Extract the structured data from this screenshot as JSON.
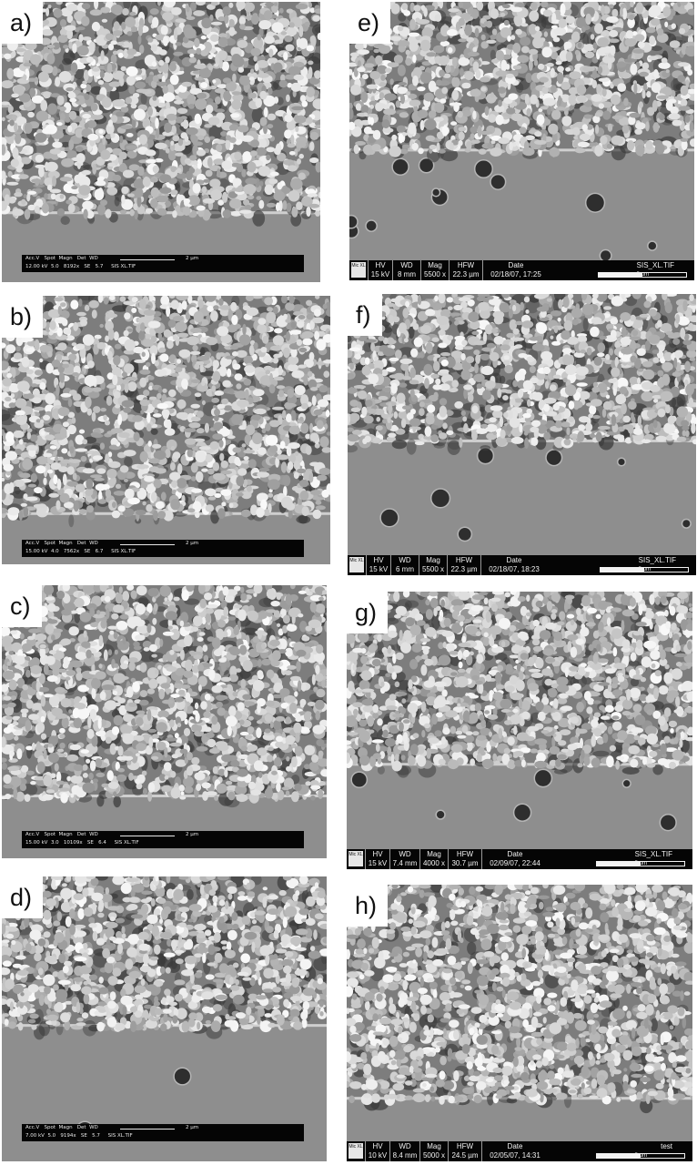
{
  "colors": {
    "background": "#ffffff",
    "info_bar": "#050505",
    "grain_light": "#d9d9d9",
    "grain_dark": "#3a3a3a",
    "substrate": "#8e8e8e"
  },
  "panels": [
    {
      "label": "a)",
      "bar_style": "philips",
      "row1": "Acc.V   Spot  Magn   Det  WD",
      "row2": "12.00 kV  5.0   8192x   SE   5.7     SIS XL.TIF",
      "scale": "2 μm"
    },
    {
      "label": "b)",
      "bar_style": "philips",
      "row1": "Acc.V   Spot  Magn   Det  WD",
      "row2": "15.00 kV  4.0   7562x   SE   6.7     SIS XL.TIF",
      "scale": "2 μm"
    },
    {
      "label": "c)",
      "bar_style": "philips",
      "row1": "Acc.V   Spot  Magn   Det  WD",
      "row2": "15.00 kV  3.0   10109x   SE   6.4     SIS XL.TIF",
      "scale": "2 μm"
    },
    {
      "label": "d)",
      "bar_style": "philips",
      "row1": "Acc.V   Spot  Magn   Det  WD",
      "row2": "7.00 kV  5.0   9194x   SE   5.7     SIS XL.TIF",
      "scale": "2 μm"
    },
    {
      "label": "e)",
      "bar_style": "fei",
      "logo": "Mic XL",
      "hv": "15 kV",
      "wd": "8 mm",
      "mag": "5500 x",
      "hfw": "22.3 µm",
      "date": "02/18/07, 17:25",
      "file": "SIS_XL.TIF",
      "scale": "5 μm"
    },
    {
      "label": "f)",
      "bar_style": "fei",
      "logo": "Mic XL",
      "hv": "15 kV",
      "wd": "6 mm",
      "mag": "5500 x",
      "hfw": "22.3 µm",
      "date": "02/18/07, 18:23",
      "file": "SIS_XL.TIF",
      "scale": "5 μm"
    },
    {
      "label": "g)",
      "bar_style": "fei",
      "logo": "Mic XL",
      "hv": "15 kV",
      "wd": "7.4 mm",
      "mag": "4000 x",
      "hfw": "30.7 µm",
      "date": "02/09/07, 22:44",
      "file": "SIS_XL.TIF",
      "scale": "5 μm"
    },
    {
      "label": "h)",
      "bar_style": "fei",
      "logo": "Mic XL",
      "hv": "10 kV",
      "wd": "8.4 mm",
      "mag": "5000 x",
      "hfw": "24.5 µm",
      "date": "02/05/07, 14:31",
      "file": "test",
      "scale": "5 μm"
    }
  ],
  "bar_headers": {
    "hv": "HV",
    "wd": "WD",
    "mag": "Mag",
    "hfw": "HFW",
    "date": "Date"
  }
}
